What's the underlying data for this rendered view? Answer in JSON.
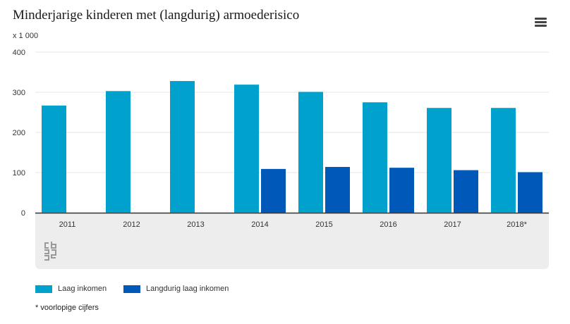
{
  "title": "Minderjarige kinderen met (langdurig) armoederisico",
  "unit_label": "x 1 000",
  "menu_icon": "hamburger-menu-icon",
  "logo_icon": "cbs-logo-icon",
  "footnote": "* voorlopige cijfers",
  "colors": {
    "laag": "#00a1cd",
    "langdurig": "#0058b8",
    "grid": "#e6e6e6",
    "axis": "#333333",
    "panel": "#ededed"
  },
  "chart_data": {
    "type": "bar",
    "title": "Minderjarige kinderen met (langdurig) armoederisico",
    "ylabel": "x 1 000",
    "xlabel": "",
    "ylim": [
      0,
      400
    ],
    "yticks": [
      0,
      100,
      200,
      300,
      400
    ],
    "grid": true,
    "legend_position": "bottom-left",
    "categories": [
      "2011",
      "2012",
      "2013",
      "2014",
      "2015",
      "2016",
      "2017",
      "2018*"
    ],
    "series": [
      {
        "name": "Laag inkomen",
        "color": "#00a1cd",
        "values": [
          267,
          303,
          328,
          319,
          301,
          275,
          261,
          261
        ]
      },
      {
        "name": "Langdurig laag inkomen",
        "color": "#0058b8",
        "values": [
          null,
          null,
          null,
          109,
          114,
          112,
          106,
          101
        ]
      }
    ]
  }
}
